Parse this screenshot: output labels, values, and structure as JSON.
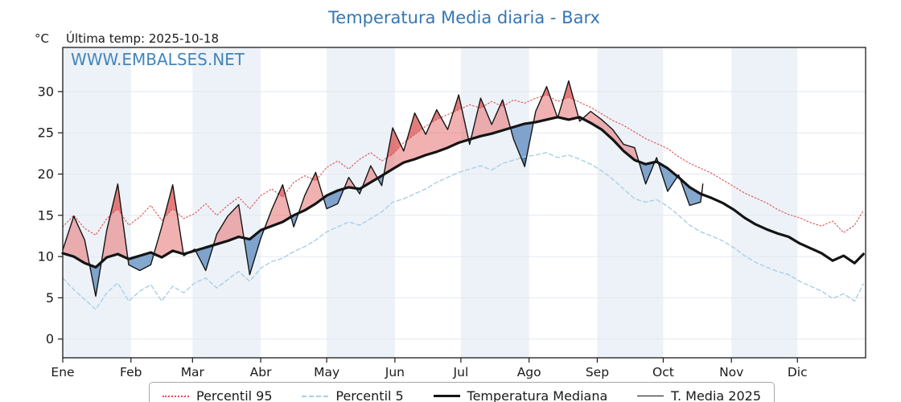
{
  "header": {
    "title": "Temperatura Media diaria - Barx",
    "unit_label": "°C",
    "last_temp_label": "Última temp: 2025-10-18"
  },
  "watermark": "WWW.EMBALSES.NET",
  "colors": {
    "title": "#3577b4",
    "watermark": "#4285bb",
    "band": "#edf2f8",
    "grid": "#e2e8f0",
    "axis": "#1a1a1a",
    "p95_line": "#e05050",
    "p5_line": "#a9cfe5",
    "median_line": "#141414",
    "t2025_line": "#141414",
    "fill_above": "rgba(230,100,100,0.50)",
    "fill_above_p95": "rgba(210,60,60,0.45)",
    "fill_below": "rgba(80,130,185,0.70)",
    "fill_below_p5": "rgba(45,95,150,0.50)",
    "legend_border": "#a8a8a8"
  },
  "chart_data": {
    "type": "line",
    "title": "Temperatura Media diaria - Barx",
    "ylabel": "°C",
    "x_tick_labels": [
      "Ene",
      "Feb",
      "Mar",
      "Abr",
      "May",
      "Jun",
      "Jul",
      "Ago",
      "Sep",
      "Oct",
      "Nov",
      "Dic"
    ],
    "month_start_days": [
      0,
      31,
      59,
      90,
      120,
      151,
      181,
      212,
      243,
      273,
      304,
      334
    ],
    "days_in_year": 365,
    "yticks": [
      0,
      5,
      10,
      15,
      20,
      25,
      30
    ],
    "ylim": [
      -2.27,
      35.35
    ],
    "grid": true,
    "legend_position": "bottom",
    "legend": [
      "Percentil 95",
      "Percentil 5",
      "Temperatura Mediana",
      "T. Media 2025"
    ],
    "sample_days": [
      0,
      5,
      10,
      15,
      20,
      25,
      30,
      35,
      40,
      45,
      50,
      55,
      60,
      65,
      70,
      75,
      80,
      85,
      90,
      95,
      100,
      105,
      110,
      115,
      120,
      125,
      130,
      135,
      140,
      145,
      150,
      155,
      160,
      165,
      170,
      175,
      180,
      185,
      190,
      195,
      200,
      205,
      210,
      215,
      220,
      225,
      230,
      235,
      240,
      245,
      250,
      255,
      260,
      265,
      270,
      275,
      280,
      285,
      290,
      295,
      300,
      305,
      310,
      315,
      320,
      325,
      330,
      335,
      340,
      345,
      350,
      355,
      360,
      364
    ],
    "series": [
      {
        "name": "Percentil 95",
        "values": [
          13.6,
          15.0,
          13.4,
          12.6,
          14.6,
          15.8,
          13.8,
          14.8,
          16.2,
          14.4,
          15.8,
          14.6,
          15.2,
          16.4,
          15.0,
          16.2,
          17.2,
          15.8,
          17.4,
          18.2,
          17.2,
          19.0,
          19.8,
          19.2,
          20.8,
          21.6,
          20.6,
          21.8,
          22.6,
          21.6,
          22.4,
          23.8,
          24.8,
          25.8,
          26.6,
          27.2,
          27.8,
          28.4,
          28.0,
          28.8,
          28.2,
          29.0,
          28.6,
          29.2,
          29.6,
          28.8,
          29.3,
          28.7,
          28.1,
          27.3,
          26.5,
          25.9,
          25.1,
          24.3,
          23.7,
          23.1,
          22.1,
          21.3,
          20.7,
          20.1,
          19.3,
          18.5,
          17.7,
          17.1,
          16.5,
          15.7,
          15.1,
          14.7,
          14.1,
          13.7,
          14.3,
          12.9,
          13.8,
          15.6
        ]
      },
      {
        "name": "Percentil 5",
        "values": [
          7.4,
          6.0,
          4.8,
          3.6,
          5.6,
          6.8,
          4.6,
          5.8,
          6.6,
          4.6,
          6.4,
          5.6,
          6.8,
          7.4,
          6.2,
          7.2,
          8.2,
          7.0,
          8.6,
          9.4,
          9.8,
          10.6,
          11.2,
          12.0,
          13.0,
          13.6,
          14.2,
          13.8,
          14.6,
          15.4,
          16.6,
          17.0,
          17.6,
          18.2,
          19.0,
          19.6,
          20.2,
          20.6,
          21.0,
          20.5,
          21.3,
          21.7,
          22.1,
          22.3,
          22.6,
          22.0,
          22.3,
          21.8,
          21.2,
          20.4,
          19.4,
          18.2,
          17.0,
          16.6,
          16.9,
          16.1,
          15.0,
          13.8,
          13.0,
          12.5,
          11.9,
          11.1,
          10.1,
          9.3,
          8.7,
          8.2,
          7.8,
          7.0,
          6.4,
          5.8,
          4.9,
          5.5,
          4.6,
          6.7
        ]
      },
      {
        "name": "Temperatura Mediana",
        "values": [
          10.4,
          10.0,
          9.2,
          8.7,
          9.9,
          10.3,
          9.7,
          10.1,
          10.5,
          9.9,
          10.7,
          10.3,
          10.7,
          11.1,
          11.5,
          11.9,
          12.4,
          12.1,
          13.2,
          13.7,
          14.2,
          15.0,
          15.6,
          16.4,
          17.4,
          18.0,
          18.4,
          18.2,
          19.0,
          19.8,
          20.6,
          21.4,
          21.8,
          22.3,
          22.7,
          23.2,
          23.8,
          24.2,
          24.6,
          24.9,
          25.3,
          25.7,
          26.1,
          26.3,
          26.6,
          26.9,
          26.6,
          26.9,
          26.2,
          25.4,
          24.2,
          22.8,
          21.7,
          21.2,
          21.5,
          20.7,
          19.6,
          18.4,
          17.6,
          17.1,
          16.5,
          15.7,
          14.7,
          13.9,
          13.3,
          12.8,
          12.4,
          11.6,
          11.0,
          10.4,
          9.5,
          10.1,
          9.2,
          10.3
        ]
      },
      {
        "name": "T. Media 2025",
        "end_day_label": "2025-10-18",
        "days": [
          0,
          5,
          10,
          15,
          20,
          25,
          30,
          35,
          40,
          45,
          50,
          55,
          60,
          65,
          70,
          75,
          80,
          85,
          90,
          95,
          100,
          105,
          110,
          115,
          120,
          125,
          130,
          135,
          140,
          145,
          150,
          155,
          160,
          165,
          170,
          175,
          180,
          185,
          190,
          195,
          200,
          205,
          210,
          215,
          220,
          225,
          230,
          235,
          240,
          245,
          250,
          255,
          260,
          265,
          270,
          275,
          280,
          285,
          290,
          291
        ],
        "values": [
          10.8,
          14.9,
          12.0,
          5.2,
          13.2,
          18.8,
          9.0,
          8.3,
          9.0,
          13.6,
          18.7,
          10.1,
          10.9,
          8.3,
          12.7,
          14.9,
          16.3,
          7.8,
          12.2,
          15.7,
          18.7,
          13.6,
          17.4,
          20.2,
          15.8,
          16.4,
          19.6,
          17.6,
          21.0,
          18.6,
          25.6,
          22.8,
          27.4,
          24.8,
          27.8,
          25.4,
          29.6,
          23.6,
          29.2,
          26.0,
          29.0,
          24.2,
          20.9,
          27.6,
          30.6,
          26.8,
          31.3,
          26.4,
          27.6,
          26.6,
          25.4,
          23.6,
          23.2,
          18.8,
          22.0,
          17.9,
          19.9,
          16.2,
          16.6,
          18.8
        ]
      }
    ]
  }
}
